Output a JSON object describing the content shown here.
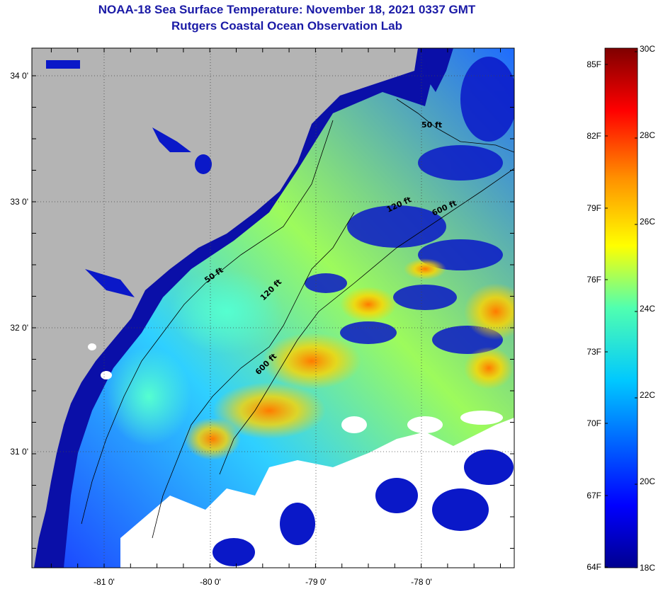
{
  "title": "NOAA-18 Sea Surface Temperature:  November 18, 2021 0337 GMT",
  "subtitle": "Rutgers Coastal Ocean Observation Lab",
  "map": {
    "lon_ticks": [
      "-81 0'",
      "-80 0'",
      "-79 0'",
      "-78 0'"
    ],
    "lat_ticks": [
      "34 0'",
      "33 0'",
      "32 0'",
      "31 0'"
    ],
    "contour_labels": [
      "50 ft",
      "120 ft",
      "600 ft",
      "50 ft",
      "120 ft",
      "600 ft"
    ],
    "colors": {
      "land": "#b4b4b4",
      "cloud": "#ffffff",
      "cold": "#00008f",
      "warm": "#ff9a00"
    }
  },
  "colorbar": {
    "fahrenheit_labels": [
      "85F",
      "82F",
      "79F",
      "76F",
      "73F",
      "70F",
      "67F",
      "64F"
    ],
    "celsius_labels": [
      "30C",
      "28C",
      "26C",
      "24C",
      "22C",
      "20C",
      "18C"
    ],
    "range_c": [
      18,
      30
    ]
  }
}
